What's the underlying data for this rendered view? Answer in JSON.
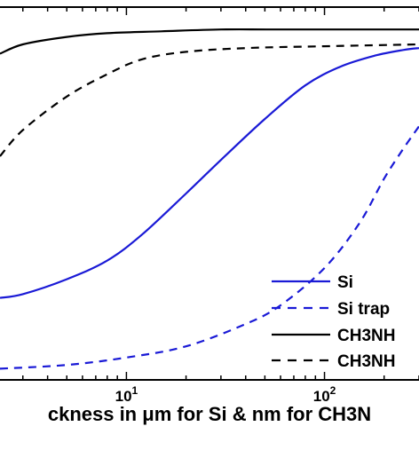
{
  "chart_data": {
    "type": "line",
    "title": "",
    "xlabel": "ckness in μm for Si & nm for CH3N",
    "ylabel": "",
    "xscale": "log",
    "xlim": [
      2.3,
      300
    ],
    "ylim": [
      0,
      1
    ],
    "x_ticks": [
      10,
      100
    ],
    "x_tick_labels": [
      "10^1",
      "10^2"
    ],
    "grid": false,
    "legend_position": "bottom-right",
    "series": [
      {
        "name": "Si",
        "color": "#1a1ad6",
        "style": "solid",
        "x": [
          2.3,
          3,
          5,
          8,
          12,
          20,
          30,
          50,
          80,
          120,
          180,
          250,
          300
        ],
        "y": [
          0.22,
          0.23,
          0.27,
          0.32,
          0.39,
          0.5,
          0.59,
          0.7,
          0.79,
          0.84,
          0.87,
          0.885,
          0.89
        ]
      },
      {
        "name": "Si trap",
        "color": "#1a1ad6",
        "style": "dashed",
        "x": [
          2.3,
          5,
          10,
          20,
          40,
          60,
          100,
          150,
          200,
          250,
          300
        ],
        "y": [
          0.03,
          0.04,
          0.06,
          0.09,
          0.15,
          0.2,
          0.3,
          0.42,
          0.54,
          0.62,
          0.68
        ]
      },
      {
        "name": "CH3NH",
        "color": "#000000",
        "style": "solid",
        "x": [
          2.3,
          3,
          5,
          8,
          15,
          30,
          60,
          300
        ],
        "y": [
          0.875,
          0.9,
          0.92,
          0.93,
          0.935,
          0.94,
          0.94,
          0.94
        ]
      },
      {
        "name": "CH3NH",
        "color": "#000000",
        "style": "dashed",
        "x": [
          2.3,
          3,
          5,
          8,
          12,
          20,
          40,
          100,
          300
        ],
        "y": [
          0.6,
          0.67,
          0.76,
          0.82,
          0.86,
          0.88,
          0.89,
          0.895,
          0.9
        ]
      }
    ]
  }
}
